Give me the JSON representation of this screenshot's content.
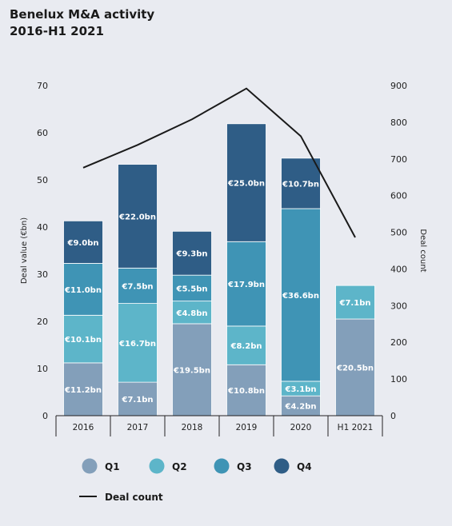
{
  "chart_data": {
    "type": "bar",
    "title": [
      "Benelux M&A activity",
      "2016-H1 2021"
    ],
    "categories": [
      "2016",
      "2017",
      "2018",
      "2019",
      "2020",
      "H1 2021"
    ],
    "ylabel": "Deal value (€bn)",
    "y2label": "Deal count",
    "ylim": [
      0,
      70
    ],
    "yticks": [
      0,
      10,
      20,
      30,
      40,
      50,
      60,
      70
    ],
    "y2lim": [
      0,
      900
    ],
    "y2ticks": [
      0,
      100,
      200,
      300,
      400,
      500,
      600,
      700,
      800,
      900
    ],
    "stacked": true,
    "series": [
      {
        "name": "Q1",
        "color": "#839fba",
        "values": [
          11.2,
          7.1,
          19.5,
          10.8,
          4.2,
          20.5
        ],
        "labels": [
          "€11.2bn",
          "€7.1bn",
          "€19.5bn",
          "€10.8bn",
          "€4.2bn",
          "€20.5bn"
        ]
      },
      {
        "name": "Q2",
        "color": "#5db5c9",
        "values": [
          10.1,
          16.7,
          4.8,
          8.2,
          3.1,
          7.1
        ],
        "labels": [
          "€10.1bn",
          "€16.7bn",
          "€4.8bn",
          "€8.2bn",
          "€3.1bn",
          "€7.1bn"
        ]
      },
      {
        "name": "Q3",
        "color": "#3f94b5",
        "values": [
          11.0,
          7.5,
          5.5,
          17.9,
          36.6,
          0
        ],
        "labels": [
          "€11.0bn",
          "€7.5bn",
          "€5.5bn",
          "€17.9bn",
          "€36.6bn",
          ""
        ]
      },
      {
        "name": "Q4",
        "color": "#2f5d86",
        "values": [
          9.0,
          22.0,
          9.3,
          25.0,
          10.7,
          0
        ],
        "labels": [
          "€9.0bn",
          "€22.0bn",
          "€9.3bn",
          "€25.0bn",
          "€10.7bn",
          ""
        ]
      }
    ],
    "line": {
      "name": "Deal count",
      "color": "#1a1a1a",
      "values": [
        676,
        738,
        808,
        892,
        762,
        486
      ]
    },
    "legend": "bottom"
  }
}
